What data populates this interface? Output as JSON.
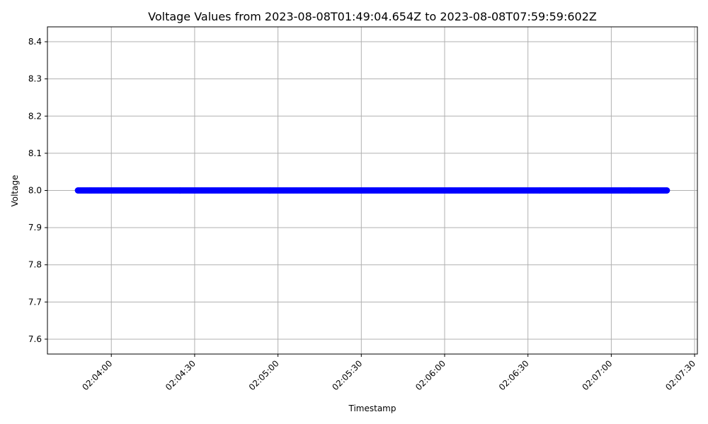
{
  "chart_data": {
    "type": "scatter",
    "title": "Voltage Values from 2023-08-08T01:49:04.654Z to 2023-08-08T07:59:59:602Z",
    "xlabel": "Timestamp",
    "ylabel": "Voltage",
    "x_start": "02:03:48",
    "x_end": "02:07:20",
    "x_range": [
      "02:03:37",
      "02:07:31"
    ],
    "x_ticks": [
      "02:04:00",
      "02:04:30",
      "02:05:00",
      "02:05:30",
      "02:06:00",
      "02:06:30",
      "02:07:00",
      "02:07:30"
    ],
    "y_value": 8.0,
    "ylim": [
      7.56,
      8.44
    ],
    "y_ticks": [
      "7.6",
      "7.7",
      "7.8",
      "7.9",
      "8.0",
      "8.1",
      "8.2",
      "8.3",
      "8.4"
    ],
    "grid": true,
    "marker_color": "#0000ff"
  }
}
